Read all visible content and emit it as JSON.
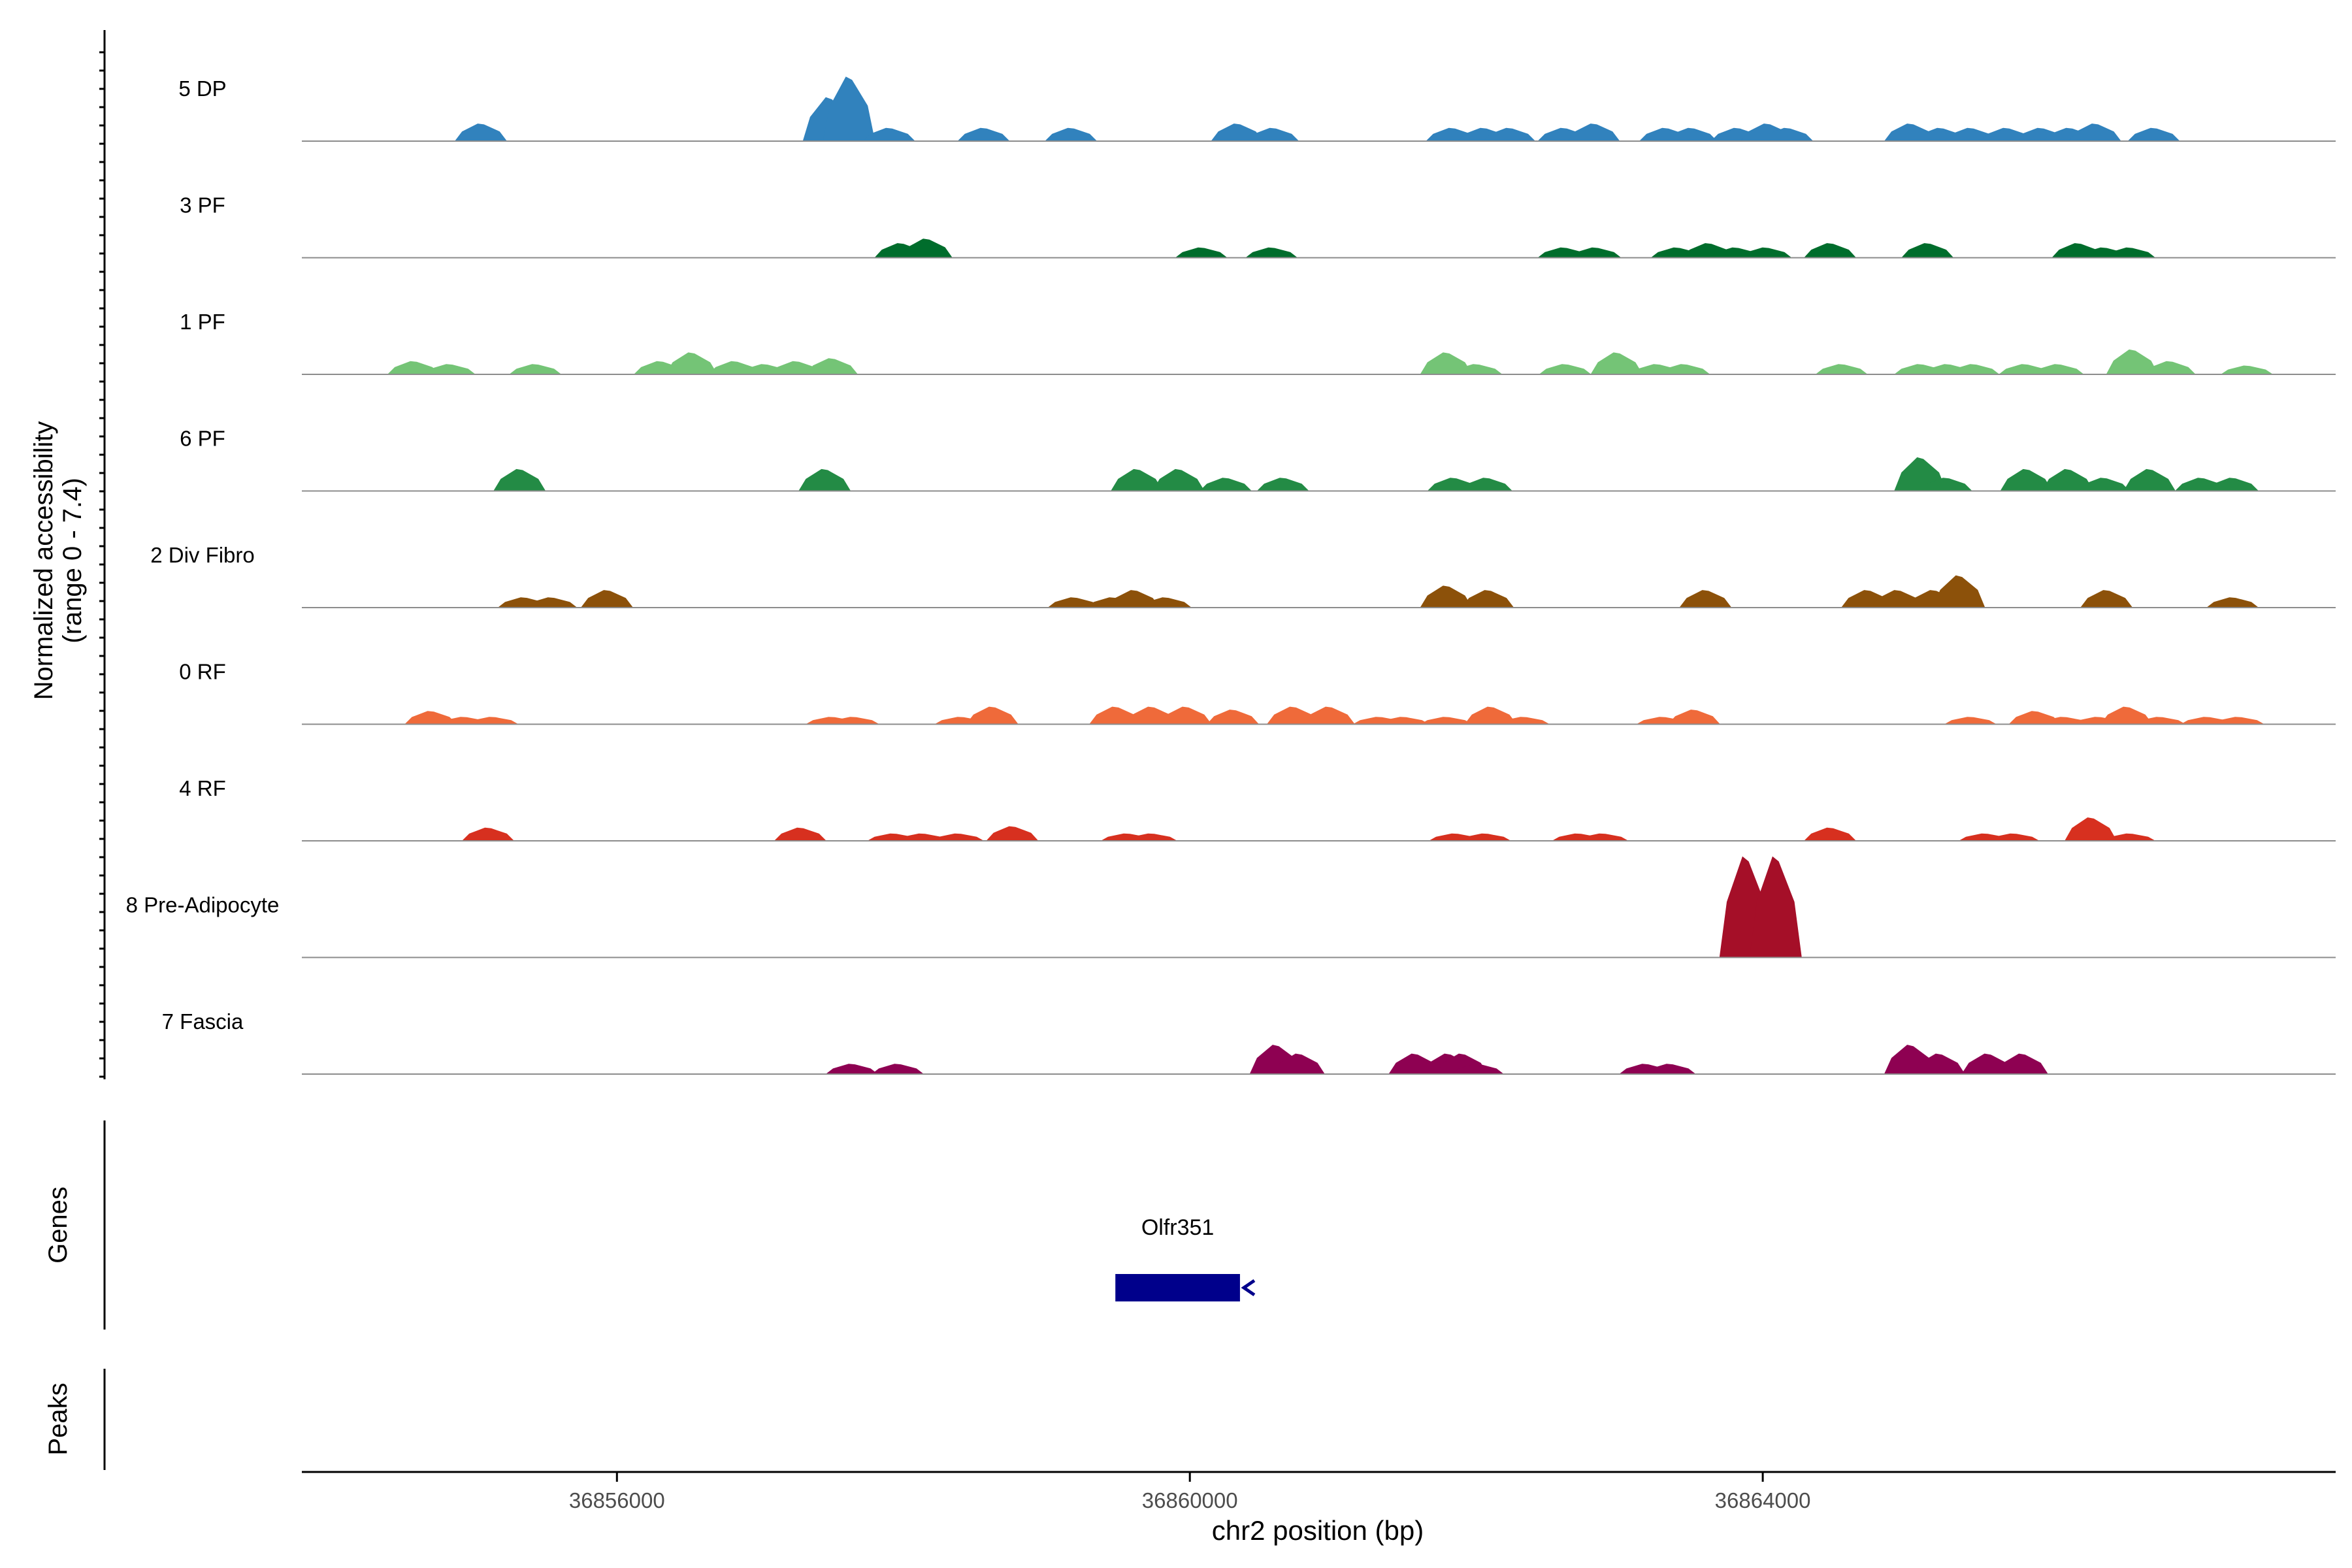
{
  "chart_data": {
    "type": "area",
    "ylabel_line1": "Normalized accessibility",
    "ylabel_line2": "(range 0 - 7.4)",
    "xlabel": "chr2 position (bp)",
    "xlim": [
      36853800,
      36868000
    ],
    "xticks": [
      {
        "value": 36856000,
        "label": "36856000"
      },
      {
        "value": 36860000,
        "label": "36860000"
      },
      {
        "value": 36864000,
        "label": "36864000"
      }
    ],
    "ymax": 7.4,
    "genes_label": "Genes",
    "peaks_label": "Peaks",
    "genes": [
      {
        "name": "Olfr351",
        "start": 36859480,
        "end": 36860350,
        "strand": "-",
        "color": "#00008b"
      }
    ],
    "tracks": [
      {
        "name": "5 DP",
        "color": "#3182bd",
        "peaks": [
          [
            36855050,
            1.2
          ],
          [
            36857480,
            3.0
          ],
          [
            36857620,
            4.4
          ],
          [
            36857900,
            0.9
          ],
          [
            36858560,
            0.9
          ],
          [
            36859170,
            0.9
          ],
          [
            36860330,
            1.2
          ],
          [
            36860580,
            0.9
          ],
          [
            36861830,
            0.9
          ],
          [
            36862050,
            0.9
          ],
          [
            36862230,
            0.9
          ],
          [
            36862610,
            0.9
          ],
          [
            36862820,
            1.2
          ],
          [
            36863320,
            0.9
          ],
          [
            36863500,
            0.9
          ],
          [
            36863820,
            0.9
          ],
          [
            36864030,
            1.2
          ],
          [
            36864170,
            0.9
          ],
          [
            36865030,
            1.2
          ],
          [
            36865240,
            0.9
          ],
          [
            36865450,
            0.9
          ],
          [
            36865700,
            0.9
          ],
          [
            36865940,
            0.9
          ],
          [
            36866140,
            0.9
          ],
          [
            36866320,
            1.2
          ],
          [
            36866730,
            0.9
          ]
        ]
      },
      {
        "name": "3 PF",
        "color": "#006d2c",
        "peaks": [
          [
            36857980,
            1.0
          ],
          [
            36858160,
            1.3
          ],
          [
            36860080,
            0.7
          ],
          [
            36860570,
            0.7
          ],
          [
            36862610,
            0.7
          ],
          [
            36862830,
            0.7
          ],
          [
            36863400,
            0.7
          ],
          [
            36863620,
            1.0
          ],
          [
            36863810,
            0.7
          ],
          [
            36864020,
            0.7
          ],
          [
            36864470,
            1.0
          ],
          [
            36865150,
            1.0
          ],
          [
            36866200,
            1.0
          ],
          [
            36866380,
            0.7
          ],
          [
            36866560,
            0.7
          ]
        ]
      },
      {
        "name": "1 PF",
        "color": "#74c476",
        "peaks": [
          [
            36854580,
            0.9
          ],
          [
            36854830,
            0.7
          ],
          [
            36855430,
            0.7
          ],
          [
            36856300,
            0.9
          ],
          [
            36856520,
            1.5
          ],
          [
            36856820,
            0.9
          ],
          [
            36857030,
            0.7
          ],
          [
            36857250,
            0.9
          ],
          [
            36857500,
            1.1
          ],
          [
            36861790,
            1.5
          ],
          [
            36862000,
            0.7
          ],
          [
            36862620,
            0.7
          ],
          [
            36862980,
            1.5
          ],
          [
            36863260,
            0.7
          ],
          [
            36863450,
            0.7
          ],
          [
            36864550,
            0.7
          ],
          [
            36865100,
            0.7
          ],
          [
            36865290,
            0.7
          ],
          [
            36865470,
            0.7
          ],
          [
            36865830,
            0.7
          ],
          [
            36866060,
            0.7
          ],
          [
            36866580,
            1.7
          ],
          [
            36866840,
            0.9
          ],
          [
            36867380,
            0.6
          ]
        ]
      },
      {
        "name": "6 PF",
        "color": "#238b45",
        "peaks": [
          [
            36855320,
            1.5
          ],
          [
            36857450,
            1.5
          ],
          [
            36859630,
            1.5
          ],
          [
            36859920,
            1.5
          ],
          [
            36860250,
            0.9
          ],
          [
            36860650,
            0.9
          ],
          [
            36861840,
            0.9
          ],
          [
            36862070,
            0.9
          ],
          [
            36865100,
            2.3
          ],
          [
            36865280,
            0.9
          ],
          [
            36865840,
            1.5
          ],
          [
            36866130,
            1.5
          ],
          [
            36866380,
            0.9
          ],
          [
            36866700,
            1.5
          ],
          [
            36867060,
            0.9
          ],
          [
            36867280,
            0.9
          ]
        ]
      },
      {
        "name": "2 Div Fibro",
        "color": "#8c510a",
        "peaks": [
          [
            36855350,
            0.7
          ],
          [
            36855540,
            0.7
          ],
          [
            36855930,
            1.2
          ],
          [
            36859190,
            0.7
          ],
          [
            36859460,
            0.7
          ],
          [
            36859610,
            1.2
          ],
          [
            36859830,
            0.7
          ],
          [
            36861790,
            1.5
          ],
          [
            36862080,
            1.2
          ],
          [
            36863600,
            1.2
          ],
          [
            36864730,
            1.2
          ],
          [
            36864940,
            1.2
          ],
          [
            36865190,
            1.2
          ],
          [
            36865370,
            2.2
          ],
          [
            36866400,
            1.2
          ],
          [
            36867280,
            0.7
          ]
        ]
      },
      {
        "name": "0 RF",
        "color": "#ef6a3a",
        "peaks": [
          [
            36854700,
            0.9
          ],
          [
            36854930,
            0.5
          ],
          [
            36855130,
            0.5
          ],
          [
            36857500,
            0.5
          ],
          [
            36857650,
            0.5
          ],
          [
            36858400,
            0.5
          ],
          [
            36858620,
            1.2
          ],
          [
            36859480,
            1.2
          ],
          [
            36859730,
            1.2
          ],
          [
            36859970,
            1.2
          ],
          [
            36860300,
            1.0
          ],
          [
            36860720,
            1.2
          ],
          [
            36860970,
            1.2
          ],
          [
            36861320,
            0.5
          ],
          [
            36861490,
            0.5
          ],
          [
            36861790,
            0.5
          ],
          [
            36862100,
            1.2
          ],
          [
            36862330,
            0.5
          ],
          [
            36863300,
            0.5
          ],
          [
            36863520,
            1.0
          ],
          [
            36865450,
            0.5
          ],
          [
            36865900,
            0.9
          ],
          [
            36866100,
            0.5
          ],
          [
            36866340,
            0.5
          ],
          [
            36866540,
            1.2
          ],
          [
            36866770,
            0.5
          ],
          [
            36867100,
            0.5
          ],
          [
            36867320,
            0.5
          ]
        ]
      },
      {
        "name": "4 RF",
        "color": "#d7301f",
        "peaks": [
          [
            36855100,
            0.9
          ],
          [
            36857280,
            0.9
          ],
          [
            36857930,
            0.5
          ],
          [
            36858130,
            0.5
          ],
          [
            36858380,
            0.5
          ],
          [
            36858760,
            1.0
          ],
          [
            36859560,
            0.5
          ],
          [
            36859730,
            0.5
          ],
          [
            36861850,
            0.5
          ],
          [
            36862060,
            0.5
          ],
          [
            36862710,
            0.5
          ],
          [
            36862880,
            0.5
          ],
          [
            36864470,
            0.9
          ],
          [
            36865550,
            0.5
          ],
          [
            36865750,
            0.5
          ],
          [
            36866290,
            1.6
          ],
          [
            36866560,
            0.5
          ]
        ]
      },
      {
        "name": "8 Pre-Adipocyte",
        "color": "#a50f28",
        "peaks": [
          [
            36863880,
            6.9
          ],
          [
            36864090,
            6.9
          ]
        ]
      },
      {
        "name": "7 Fascia",
        "color": "#8e0152",
        "peaks": [
          [
            36857640,
            0.7
          ],
          [
            36857960,
            0.7
          ],
          [
            36860600,
            2.0
          ],
          [
            36860760,
            1.4
          ],
          [
            36861570,
            1.4
          ],
          [
            36861800,
            1.4
          ],
          [
            36861900,
            1.4
          ],
          [
            36862010,
            0.7
          ],
          [
            36863180,
            0.7
          ],
          [
            36863350,
            0.7
          ],
          [
            36865030,
            2.0
          ],
          [
            36865230,
            1.4
          ],
          [
            36865570,
            1.4
          ],
          [
            36865810,
            1.4
          ]
        ]
      }
    ]
  }
}
